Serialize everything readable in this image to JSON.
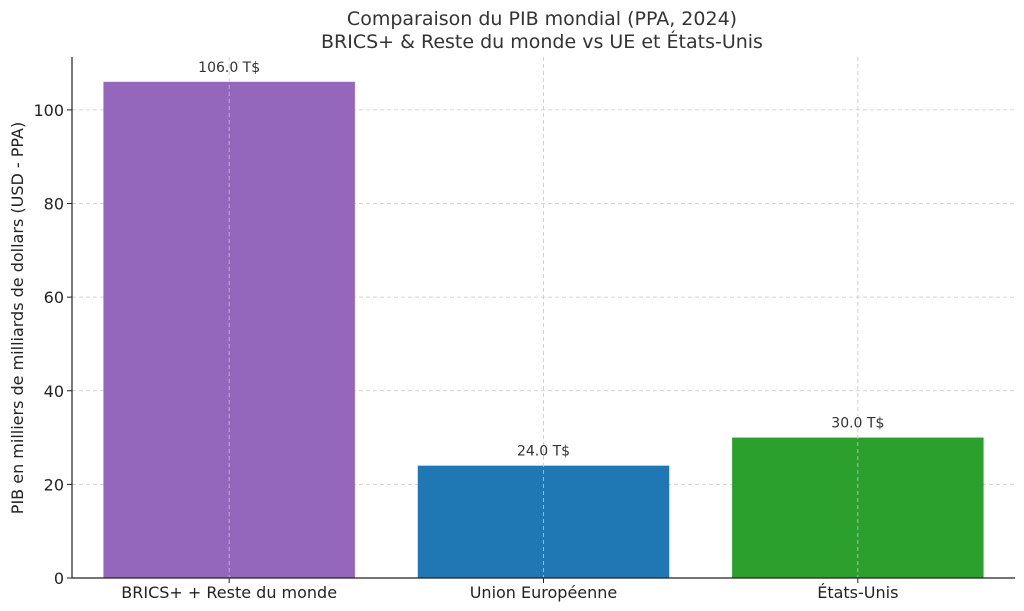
{
  "chart_data": {
    "type": "bar",
    "title": [
      "Comparaison du PIB mondial (PPA, 2024)",
      "BRICS+ & Reste du monde vs UE et États-Unis"
    ],
    "xlabel": "",
    "ylabel": "PIB en milliers de milliards de dollars (USD - PPA)",
    "categories": [
      "BRICS+ + Reste du monde",
      "Union Européenne",
      "États-Unis"
    ],
    "values": [
      106.0,
      24.0,
      30.0
    ],
    "data_labels": [
      "106.0 T$",
      "24.0 T$",
      "30.0 T$"
    ],
    "colors": [
      "#9467bd",
      "#1f77b4",
      "#2ca02c"
    ],
    "ylim": [
      0,
      111.3
    ],
    "yticks": [
      0,
      20,
      40,
      60,
      80,
      100
    ],
    "grid": true
  }
}
